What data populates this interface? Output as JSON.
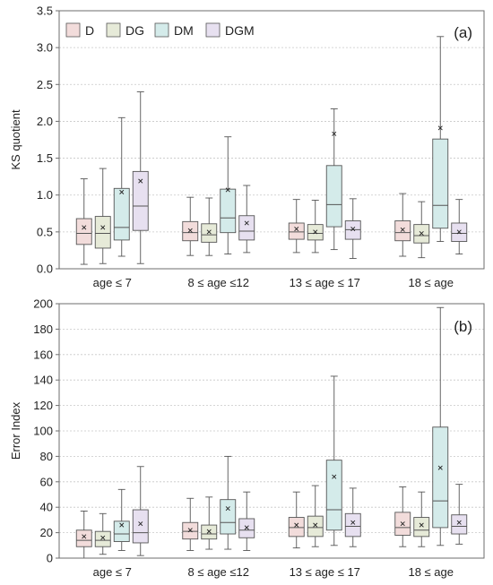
{
  "palette": {
    "D": "#f2dcdb",
    "DG": "#e6ead8",
    "DM": "#d4ebea",
    "DGM": "#e7e0f0",
    "stroke": "#555555",
    "grid": "#c8c8c8",
    "frame": "#6e6e6e"
  },
  "chart_data": [
    {
      "type": "box",
      "panel_label": "(a)",
      "ylabel": "KS quotient",
      "xlabel": "",
      "ylim": [
        0,
        3.5
      ],
      "yticks": [
        "0.0",
        "0.5",
        "1.0",
        "1.5",
        "2.0",
        "2.5",
        "3.0",
        "3.5"
      ],
      "ytick_values": [
        0,
        0.5,
        1.0,
        1.5,
        2.0,
        2.5,
        3.0,
        3.5
      ],
      "grid": true,
      "legend_position": "top-left",
      "categories": [
        "age ≤ 7",
        "8 ≤ age ≤12",
        "13 ≤ age ≤ 17",
        "18 ≤ age"
      ],
      "series": [
        {
          "name": "D",
          "boxes": [
            {
              "min": 0.06,
              "q1": 0.33,
              "median": 0.48,
              "q3": 0.68,
              "max": 1.22,
              "mean": 0.56
            },
            {
              "min": 0.18,
              "q1": 0.38,
              "median": 0.49,
              "q3": 0.64,
              "max": 0.97,
              "mean": 0.52
            },
            {
              "min": 0.22,
              "q1": 0.4,
              "median": 0.5,
              "q3": 0.62,
              "max": 0.94,
              "mean": 0.54
            },
            {
              "min": 0.17,
              "q1": 0.38,
              "median": 0.49,
              "q3": 0.65,
              "max": 1.02,
              "mean": 0.53
            }
          ]
        },
        {
          "name": "DG",
          "boxes": [
            {
              "min": 0.07,
              "q1": 0.28,
              "median": 0.48,
              "q3": 0.71,
              "max": 1.36,
              "mean": 0.56
            },
            {
              "min": 0.18,
              "q1": 0.36,
              "median": 0.46,
              "q3": 0.61,
              "max": 0.96,
              "mean": 0.5
            },
            {
              "min": 0.22,
              "q1": 0.39,
              "median": 0.48,
              "q3": 0.6,
              "max": 0.93,
              "mean": 0.5
            },
            {
              "min": 0.15,
              "q1": 0.35,
              "median": 0.45,
              "q3": 0.6,
              "max": 0.91,
              "mean": 0.48
            }
          ]
        },
        {
          "name": "DM",
          "boxes": [
            {
              "min": 0.17,
              "q1": 0.39,
              "median": 0.56,
              "q3": 1.09,
              "max": 2.05,
              "mean": 1.04
            },
            {
              "min": 0.2,
              "q1": 0.49,
              "median": 0.69,
              "q3": 1.08,
              "max": 1.79,
              "mean": 1.07
            },
            {
              "min": 0.26,
              "q1": 0.57,
              "median": 0.87,
              "q3": 1.4,
              "max": 2.17,
              "mean": 1.83
            },
            {
              "min": 0.37,
              "q1": 0.55,
              "median": 0.86,
              "q3": 1.76,
              "max": 3.15,
              "mean": 1.91
            }
          ]
        },
        {
          "name": "DGM",
          "boxes": [
            {
              "min": 0.07,
              "q1": 0.52,
              "median": 0.85,
              "q3": 1.32,
              "max": 2.4,
              "mean": 1.19
            },
            {
              "min": 0.22,
              "q1": 0.39,
              "median": 0.51,
              "q3": 0.72,
              "max": 1.13,
              "mean": 0.62
            },
            {
              "min": 0.14,
              "q1": 0.4,
              "median": 0.53,
              "q3": 0.65,
              "max": 0.95,
              "mean": 0.54
            },
            {
              "min": 0.2,
              "q1": 0.37,
              "median": 0.48,
              "q3": 0.62,
              "max": 0.94,
              "mean": 0.5
            }
          ]
        }
      ]
    },
    {
      "type": "box",
      "panel_label": "(b)",
      "ylabel": "Error Index",
      "xlabel": "",
      "ylim": [
        0,
        200
      ],
      "yticks": [
        "0",
        "20",
        "40",
        "60",
        "80",
        "100",
        "120",
        "140",
        "160",
        "180",
        "200"
      ],
      "ytick_values": [
        0,
        20,
        40,
        60,
        80,
        100,
        120,
        140,
        160,
        180,
        200
      ],
      "grid": true,
      "categories": [
        "age ≤ 7",
        "8 ≤ age ≤12",
        "13 ≤ age ≤ 17",
        "18 ≤ age"
      ],
      "series": [
        {
          "name": "D",
          "boxes": [
            {
              "min": 0,
              "q1": 9,
              "median": 14,
              "q3": 22,
              "max": 37,
              "mean": 17
            },
            {
              "min": 6,
              "q1": 15,
              "median": 21,
              "q3": 28,
              "max": 47,
              "mean": 22
            },
            {
              "min": 8,
              "q1": 17,
              "median": 24,
              "q3": 32,
              "max": 52,
              "mean": 26
            },
            {
              "min": 9,
              "q1": 18,
              "median": 24,
              "q3": 36,
              "max": 56,
              "mean": 27
            }
          ]
        },
        {
          "name": "DG",
          "boxes": [
            {
              "min": 3,
              "q1": 9,
              "median": 14,
              "q3": 21,
              "max": 35,
              "mean": 16
            },
            {
              "min": 7,
              "q1": 15,
              "median": 19,
              "q3": 26,
              "max": 48,
              "mean": 21
            },
            {
              "min": 9,
              "q1": 17,
              "median": 24,
              "q3": 33,
              "max": 57,
              "mean": 26
            },
            {
              "min": 9,
              "q1": 17,
              "median": 22,
              "q3": 32,
              "max": 52,
              "mean": 26
            }
          ]
        },
        {
          "name": "DM",
          "boxes": [
            {
              "min": 6,
              "q1": 13,
              "median": 19,
              "q3": 29,
              "max": 54,
              "mean": 26
            },
            {
              "min": 7,
              "q1": 19,
              "median": 28,
              "q3": 46,
              "max": 80,
              "mean": 39
            },
            {
              "min": 10,
              "q1": 22,
              "median": 38,
              "q3": 77,
              "max": 143,
              "mean": 64
            },
            {
              "min": 10,
              "q1": 24,
              "median": 45,
              "q3": 103,
              "max": 197,
              "mean": 71
            }
          ]
        },
        {
          "name": "DGM",
          "boxes": [
            {
              "min": 2,
              "q1": 12,
              "median": 20,
              "q3": 38,
              "max": 72,
              "mean": 27
            },
            {
              "min": 6,
              "q1": 16,
              "median": 22,
              "q3": 31,
              "max": 52,
              "mean": 24
            },
            {
              "min": 9,
              "q1": 17,
              "median": 25,
              "q3": 35,
              "max": 55,
              "mean": 28
            },
            {
              "min": 11,
              "q1": 19,
              "median": 25,
              "q3": 34,
              "max": 58,
              "mean": 28
            }
          ]
        }
      ]
    }
  ]
}
